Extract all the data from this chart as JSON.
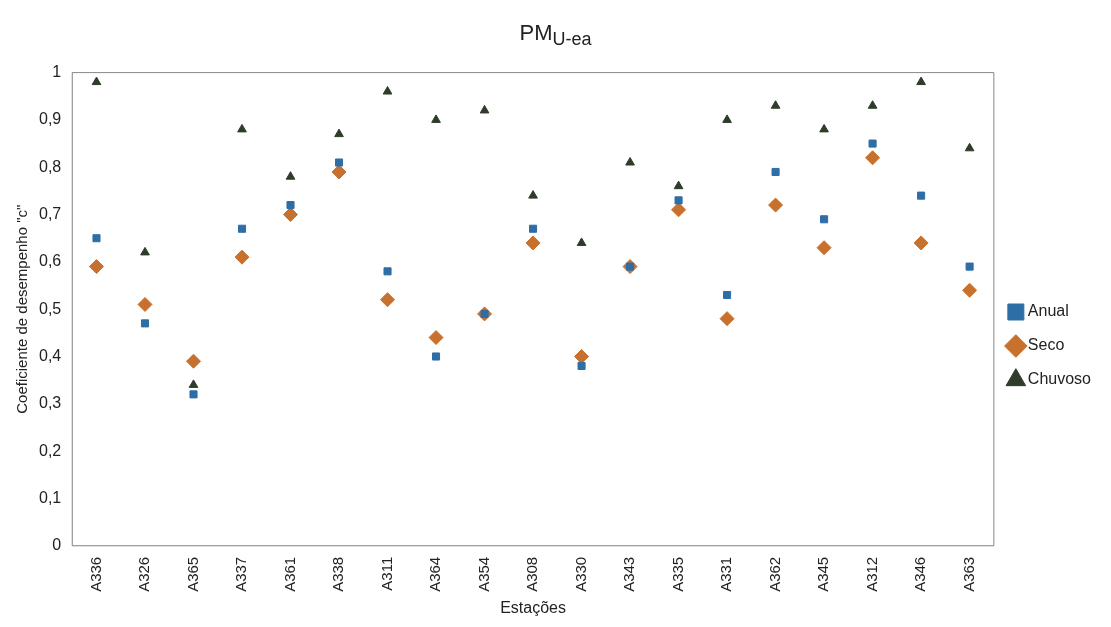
{
  "chart_data": {
    "type": "scatter",
    "title": "PM$_{U-ea}$",
    "xlabel": "Estações",
    "ylabel": "Coeficiente de desempenho \"c\"",
    "categories": [
      "A336",
      "A326",
      "A365",
      "A337",
      "A361",
      "A338",
      "A311",
      "A364",
      "A354",
      "A308",
      "A330",
      "A343",
      "A335",
      "A331",
      "A362",
      "A345",
      "A312",
      "A346",
      "A363"
    ],
    "series": [
      {
        "name": "Anual",
        "color": "#2e6ea6",
        "marker": "square",
        "values": [
          0.65,
          0.47,
          0.32,
          0.67,
          0.72,
          0.81,
          0.58,
          0.4,
          0.49,
          0.67,
          0.38,
          0.59,
          0.73,
          0.53,
          0.79,
          0.69,
          0.85,
          0.74,
          0.59
        ]
      },
      {
        "name": "Seco",
        "color": "#c8712e",
        "marker": "diamond",
        "values": [
          0.59,
          0.51,
          0.39,
          0.61,
          0.7,
          0.79,
          0.52,
          0.44,
          0.49,
          0.64,
          0.4,
          0.59,
          0.71,
          0.48,
          0.72,
          0.63,
          0.82,
          0.64,
          0.54
        ]
      },
      {
        "name": "Chuvoso",
        "color": "#2f3b2b",
        "marker": "triangle",
        "values": [
          0.98,
          0.62,
          0.34,
          0.88,
          0.78,
          0.87,
          0.96,
          0.9,
          0.92,
          0.74,
          0.64,
          0.81,
          0.76,
          0.9,
          0.93,
          0.88,
          0.93,
          0.98,
          0.84
        ]
      }
    ],
    "ylim": [
      0,
      1
    ],
    "yticks": [
      0,
      {
        "value": 0.1,
        "label": "0,1"
      },
      {
        "value": 0.2,
        "label": "0,2"
      },
      {
        "value": 0.3,
        "label": "0,3"
      },
      {
        "value": 0.4,
        "label": "0,4"
      },
      {
        "value": 0.5,
        "label": "0,5"
      },
      {
        "value": 0.6,
        "label": "0,6"
      },
      {
        "value": 0.7,
        "label": "0,7"
      },
      {
        "value": 0.8,
        "label": "0,8"
      },
      {
        "value": 0.9,
        "label": "0,9"
      },
      1
    ],
    "grid": false,
    "legend": "right"
  }
}
